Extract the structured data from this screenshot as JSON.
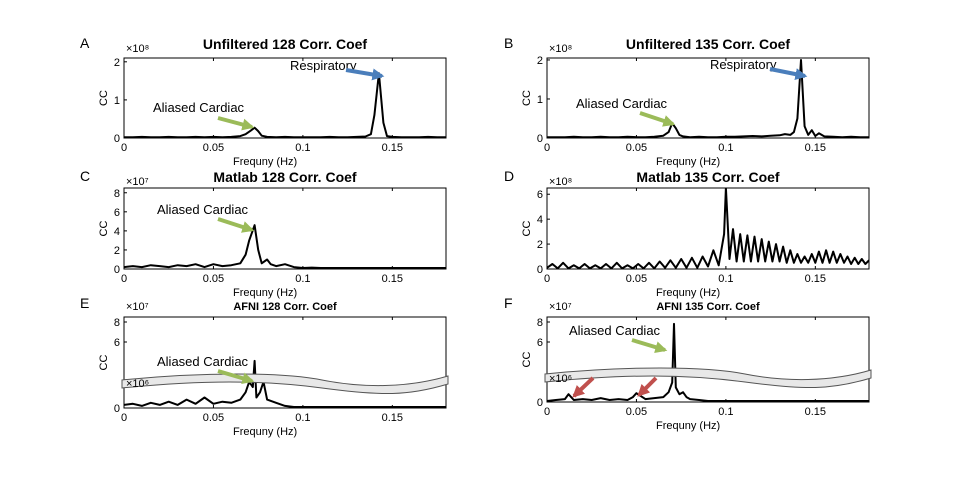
{
  "chart_data": [
    {
      "type": "line",
      "panel_letter": "A",
      "title": "Unfiltered 128 Corr. Coef",
      "xlabel": "Frequny (Hz)",
      "ylabel": "CC",
      "exponent": "×10⁸",
      "xlim": [
        0,
        0.18
      ],
      "ylim": [
        0,
        2.1
      ],
      "xticks": [
        0,
        0.05,
        0.1,
        0.15
      ],
      "xtick_labels": [
        "0",
        "0.05",
        "0.1",
        "0.15"
      ],
      "yticks": [
        0,
        1,
        2
      ],
      "ytick_labels": [
        "0",
        "1",
        "2"
      ],
      "x": [
        0,
        0.005,
        0.01,
        0.015,
        0.02,
        0.025,
        0.03,
        0.035,
        0.04,
        0.045,
        0.05,
        0.055,
        0.06,
        0.065,
        0.068,
        0.071,
        0.073,
        0.075,
        0.077,
        0.08,
        0.085,
        0.09,
        0.095,
        0.1,
        0.105,
        0.11,
        0.115,
        0.12,
        0.125,
        0.13,
        0.135,
        0.138,
        0.14,
        0.1425,
        0.145,
        0.147,
        0.15,
        0.155,
        0.16,
        0.165,
        0.17,
        0.175,
        0.18
      ],
      "y": [
        0.02,
        0.02,
        0.03,
        0.02,
        0.02,
        0.03,
        0.02,
        0.02,
        0.03,
        0.02,
        0.03,
        0.02,
        0.03,
        0.05,
        0.1,
        0.2,
        0.27,
        0.18,
        0.06,
        0.03,
        0.02,
        0.03,
        0.02,
        0.02,
        0.02,
        0.02,
        0.03,
        0.02,
        0.02,
        0.03,
        0.04,
        0.1,
        0.6,
        1.7,
        0.4,
        0.05,
        0.03,
        0.02,
        0.02,
        0.02,
        0.03,
        0.02,
        0.02
      ],
      "annotations": [
        {
          "text": "Respiratory",
          "arrow": "blue",
          "x": 0.1425,
          "y": 1.7
        },
        {
          "text": "Aliased Cardiac",
          "arrow": "green",
          "x": 0.073,
          "y": 0.27
        }
      ]
    },
    {
      "type": "line",
      "panel_letter": "B",
      "title": "Unfiltered 135 Corr. Coef",
      "xlabel": "Frequny (Hz)",
      "ylabel": "CC",
      "exponent": "×10⁸",
      "xlim": [
        0,
        0.18
      ],
      "ylim": [
        0,
        2.05
      ],
      "xticks": [
        0,
        0.05,
        0.1,
        0.15
      ],
      "xtick_labels": [
        "0",
        "0.05",
        "0.1",
        "0.15"
      ],
      "yticks": [
        0,
        1,
        2
      ],
      "ytick_labels": [
        "0",
        "1",
        "2"
      ],
      "x": [
        0,
        0.005,
        0.01,
        0.015,
        0.02,
        0.025,
        0.03,
        0.035,
        0.04,
        0.045,
        0.05,
        0.055,
        0.06,
        0.065,
        0.068,
        0.07,
        0.072,
        0.074,
        0.076,
        0.08,
        0.085,
        0.09,
        0.095,
        0.1,
        0.105,
        0.11,
        0.115,
        0.12,
        0.125,
        0.13,
        0.133,
        0.136,
        0.138,
        0.14,
        0.142,
        0.144,
        0.146,
        0.148,
        0.15,
        0.152,
        0.155,
        0.16,
        0.165,
        0.17,
        0.175,
        0.18
      ],
      "y": [
        0.02,
        0.02,
        0.02,
        0.03,
        0.02,
        0.02,
        0.03,
        0.02,
        0.02,
        0.03,
        0.02,
        0.02,
        0.03,
        0.06,
        0.15,
        0.38,
        0.25,
        0.08,
        0.04,
        0.02,
        0.03,
        0.02,
        0.02,
        0.03,
        0.03,
        0.04,
        0.05,
        0.04,
        0.06,
        0.07,
        0.1,
        0.08,
        0.15,
        0.5,
        2.0,
        0.3,
        0.08,
        0.2,
        0.05,
        0.12,
        0.04,
        0.03,
        0.02,
        0.03,
        0.02,
        0.02
      ],
      "annotations": [
        {
          "text": "Respiratory",
          "arrow": "blue",
          "x": 0.142,
          "y": 2.0
        },
        {
          "text": "Aliased Cardiac",
          "arrow": "green",
          "x": 0.07,
          "y": 0.38
        }
      ]
    },
    {
      "type": "line",
      "panel_letter": "C",
      "title": "Matlab 128 Corr. Coef",
      "xlabel": "Frequny (Hz)",
      "ylabel": "CC",
      "exponent": "×10⁷",
      "xlim": [
        0,
        0.18
      ],
      "ylim": [
        0,
        8.5
      ],
      "xticks": [
        0,
        0.05,
        0.1,
        0.15
      ],
      "xtick_labels": [
        "0",
        "0.05",
        "0.1",
        "0.15"
      ],
      "yticks": [
        0,
        2,
        4,
        6,
        8
      ],
      "ytick_labels": [
        "0",
        "2",
        "4",
        "6",
        "8"
      ],
      "x": [
        0,
        0.005,
        0.01,
        0.015,
        0.02,
        0.025,
        0.03,
        0.035,
        0.04,
        0.045,
        0.05,
        0.055,
        0.06,
        0.065,
        0.068,
        0.07,
        0.073,
        0.075,
        0.077,
        0.08,
        0.082,
        0.085,
        0.09,
        0.095,
        0.1,
        0.105,
        0.11,
        0.115,
        0.12,
        0.125,
        0.13,
        0.135,
        0.14,
        0.145,
        0.15,
        0.155,
        0.16,
        0.165,
        0.17,
        0.175,
        0.18
      ],
      "y": [
        0.2,
        0.3,
        0.2,
        0.4,
        0.3,
        0.2,
        0.4,
        0.3,
        0.5,
        0.2,
        0.5,
        0.3,
        0.4,
        0.6,
        1.5,
        3.0,
        4.6,
        2.0,
        0.6,
        1.0,
        0.5,
        0.3,
        0.5,
        0.2,
        0.1,
        0.15,
        0.1,
        0.1,
        0.1,
        0.1,
        0.1,
        0.1,
        0.1,
        0.1,
        0.1,
        0.1,
        0.1,
        0.1,
        0.1,
        0.1,
        0.1
      ],
      "annotations": [
        {
          "text": "Aliased Cardiac",
          "arrow": "green",
          "x": 0.073,
          "y": 4.6
        }
      ]
    },
    {
      "type": "line",
      "panel_letter": "D",
      "title": "Matlab 135 Corr. Coef",
      "xlabel": "Frequny (Hz)",
      "ylabel": "CC",
      "exponent": "×10⁸",
      "xlim": [
        0,
        0.18
      ],
      "ylim": [
        0,
        6.5
      ],
      "xticks": [
        0,
        0.05,
        0.1,
        0.15
      ],
      "xtick_labels": [
        "0",
        "0.05",
        "0.1",
        "0.15"
      ],
      "yticks": [
        0,
        2,
        4,
        6
      ],
      "ytick_labels": [
        "0",
        "2",
        "4",
        "6"
      ],
      "x": [
        0,
        0.003,
        0.006,
        0.009,
        0.012,
        0.015,
        0.018,
        0.021,
        0.024,
        0.027,
        0.03,
        0.033,
        0.036,
        0.039,
        0.042,
        0.045,
        0.048,
        0.051,
        0.054,
        0.057,
        0.06,
        0.063,
        0.066,
        0.069,
        0.072,
        0.075,
        0.078,
        0.081,
        0.084,
        0.087,
        0.09,
        0.093,
        0.096,
        0.099,
        0.1,
        0.102,
        0.104,
        0.106,
        0.108,
        0.11,
        0.112,
        0.114,
        0.116,
        0.118,
        0.12,
        0.122,
        0.124,
        0.126,
        0.128,
        0.13,
        0.132,
        0.134,
        0.136,
        0.138,
        0.14,
        0.142,
        0.144,
        0.146,
        0.148,
        0.15,
        0.152,
        0.154,
        0.156,
        0.158,
        0.16,
        0.162,
        0.164,
        0.166,
        0.168,
        0.17,
        0.172,
        0.174,
        0.176,
        0.178,
        0.18
      ],
      "y": [
        0.1,
        0.4,
        0.05,
        0.5,
        0.05,
        0.3,
        0.05,
        0.4,
        0.05,
        0.3,
        0.05,
        0.4,
        0.05,
        0.5,
        0.05,
        0.3,
        0.05,
        0.4,
        0.05,
        0.5,
        0.05,
        0.6,
        0.1,
        0.7,
        0.1,
        0.8,
        0.1,
        0.9,
        0.1,
        1.0,
        0.2,
        1.5,
        0.3,
        2.8,
        6.5,
        0.8,
        3.2,
        0.6,
        2.8,
        0.6,
        2.7,
        0.6,
        2.6,
        0.6,
        2.4,
        0.6,
        2.2,
        0.6,
        2.0,
        0.6,
        1.8,
        0.5,
        1.5,
        0.5,
        1.2,
        0.5,
        1.0,
        0.5,
        1.2,
        0.5,
        1.4,
        0.5,
        1.5,
        0.5,
        1.4,
        0.5,
        1.2,
        0.5,
        1.0,
        0.4,
        0.9,
        0.4,
        0.8,
        0.4,
        0.7
      ],
      "annotations": []
    },
    {
      "type": "line",
      "panel_letter": "E",
      "title": "AFNI 128 Corr. Coef",
      "xlabel": "Frequny (Hz)",
      "ylabel": "CC",
      "exponent": "×10⁷",
      "exponent_lower": "×10⁶",
      "xlim": [
        0,
        0.18
      ],
      "ylim": [
        0,
        8.5
      ],
      "broken_axis": true,
      "xticks": [
        0,
        0.05,
        0.1,
        0.15
      ],
      "xtick_labels": [
        "0",
        "0.05",
        "0.1",
        "0.15"
      ],
      "yticks": [
        0,
        6,
        8
      ],
      "ytick_labels": [
        "0",
        "6",
        "8"
      ],
      "x": [
        0,
        0.005,
        0.01,
        0.015,
        0.02,
        0.025,
        0.03,
        0.035,
        0.04,
        0.045,
        0.05,
        0.055,
        0.06,
        0.065,
        0.068,
        0.07,
        0.072,
        0.073,
        0.074,
        0.076,
        0.078,
        0.08,
        0.085,
        0.09,
        0.095,
        0.1,
        0.11,
        0.12,
        0.13,
        0.14,
        0.15,
        0.16,
        0.17,
        0.18
      ],
      "y": [
        0.3,
        0.4,
        0.2,
        0.5,
        0.3,
        0.6,
        0.3,
        0.8,
        0.4,
        1.0,
        0.4,
        0.6,
        0.5,
        0.8,
        1.5,
        2.5,
        2.0,
        4.5,
        1.0,
        1.5,
        2.5,
        0.8,
        0.5,
        0.2,
        0.1,
        0.1,
        0.1,
        0.1,
        0.1,
        0.1,
        0.1,
        0.1,
        0.1,
        0.1
      ],
      "annotations": [
        {
          "text": "Aliased Cardiac",
          "arrow": "green",
          "x": 0.073,
          "y": 4.5
        }
      ]
    },
    {
      "type": "line",
      "panel_letter": "F",
      "title": "AFNI 135 Corr. Coef",
      "xlabel": "Frequny (Hz)",
      "ylabel": "CC",
      "exponent": "×10⁷",
      "exponent_lower": "×10⁶",
      "xlim": [
        0,
        0.18
      ],
      "ylim": [
        0,
        8.5
      ],
      "broken_axis": true,
      "xticks": [
        0,
        0.05,
        0.1,
        0.15
      ],
      "xtick_labels": [
        "0",
        "0.05",
        "0.1",
        "0.15"
      ],
      "yticks": [
        0,
        6,
        8
      ],
      "ytick_labels": [
        "0",
        "6",
        "8"
      ],
      "x": [
        0,
        0.005,
        0.01,
        0.012,
        0.015,
        0.02,
        0.025,
        0.03,
        0.035,
        0.04,
        0.045,
        0.048,
        0.05,
        0.055,
        0.06,
        0.065,
        0.068,
        0.07,
        0.071,
        0.072,
        0.074,
        0.076,
        0.078,
        0.08,
        0.085,
        0.09,
        0.1,
        0.11,
        0.12,
        0.13,
        0.14,
        0.15,
        0.16,
        0.17,
        0.18
      ],
      "y": [
        0.1,
        0.2,
        0.3,
        0.8,
        0.2,
        0.3,
        0.2,
        0.4,
        0.2,
        0.3,
        0.2,
        0.5,
        0.9,
        0.3,
        0.4,
        0.5,
        1.0,
        2.0,
        8.0,
        1.5,
        0.8,
        1.0,
        0.5,
        0.3,
        0.2,
        0.1,
        0.1,
        0.1,
        0.1,
        0.1,
        0.1,
        0.1,
        0.1,
        0.1,
        0.1
      ],
      "annotations": [
        {
          "text": "Aliased Cardiac",
          "arrow": "green",
          "x": 0.071,
          "y": 8.0
        },
        {
          "text": "",
          "arrow": "red",
          "x": 0.012,
          "y": 0.8
        },
        {
          "text": "",
          "arrow": "red",
          "x": 0.05,
          "y": 0.9
        }
      ]
    }
  ],
  "colors": {
    "line": "#000000",
    "arrow_blue": "#4a7ebb",
    "arrow_green": "#9bbb59",
    "arrow_red": "#c0504d",
    "break_fill": "#e8e8e8"
  }
}
